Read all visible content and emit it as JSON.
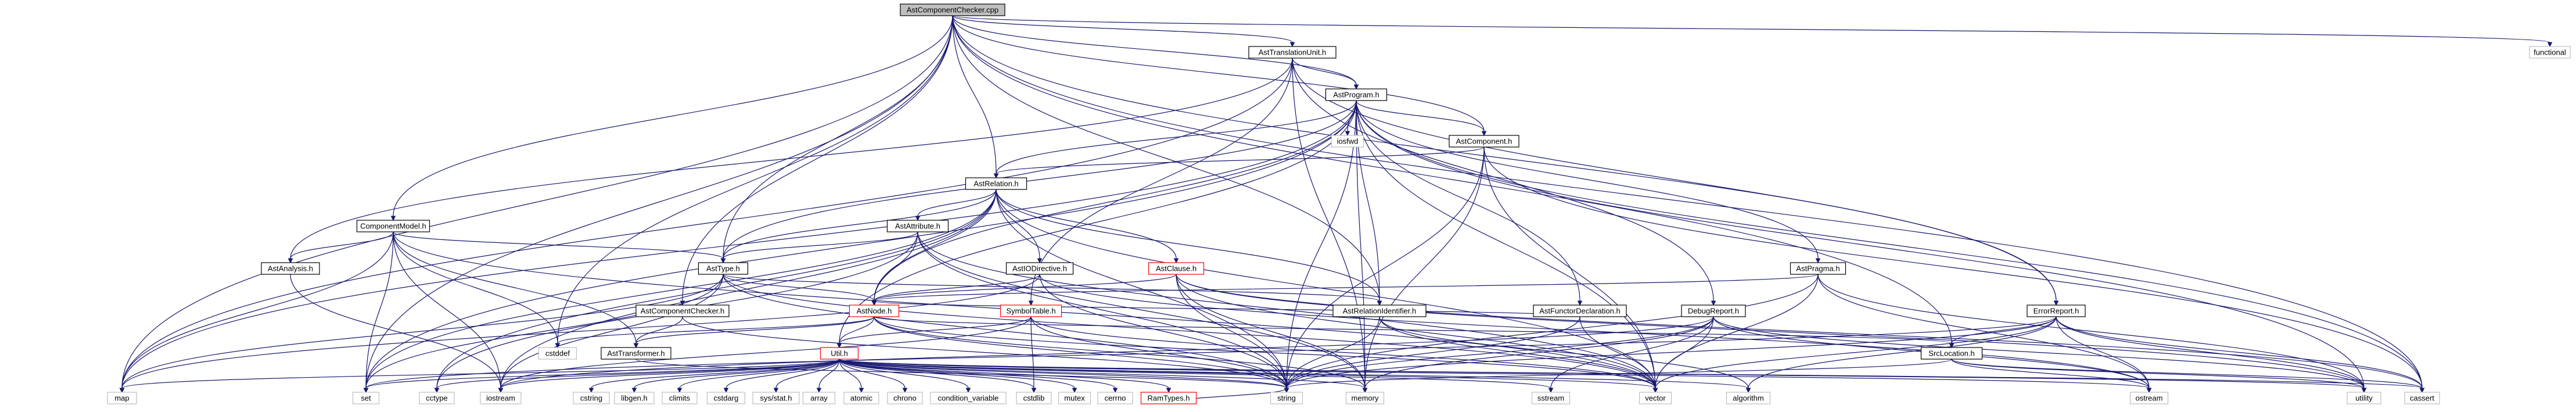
{
  "graph": {
    "colors": {
      "edge": "#191970",
      "root_fill": "#bfbfbf",
      "node_fill": "#ffffff",
      "node_border": "#000000",
      "external_border": "#bfbfbf",
      "truncated_border": "#ff0000"
    },
    "nodes": [
      {
        "id": "AstComponentChecker_cpp",
        "label": "AstComponentChecker.cpp",
        "kind": "root"
      },
      {
        "id": "AstTranslationUnit_h",
        "label": "AstTranslationUnit.h",
        "kind": "header"
      },
      {
        "id": "functional",
        "label": "functional",
        "kind": "system"
      },
      {
        "id": "AstProgram_h",
        "label": "AstProgram.h",
        "kind": "header"
      },
      {
        "id": "iosfwd",
        "label": "iosfwd",
        "kind": "system"
      },
      {
        "id": "AstComponent_h",
        "label": "AstComponent.h",
        "kind": "header"
      },
      {
        "id": "AstRelation_h",
        "label": "AstRelation.h",
        "kind": "header"
      },
      {
        "id": "ComponentModel_h",
        "label": "ComponentModel.h",
        "kind": "header"
      },
      {
        "id": "AstAttribute_h",
        "label": "AstAttribute.h",
        "kind": "header"
      },
      {
        "id": "AstAnalysis_h",
        "label": "AstAnalysis.h",
        "kind": "header"
      },
      {
        "id": "AstType_h",
        "label": "AstType.h",
        "kind": "header"
      },
      {
        "id": "AstIODirective_h",
        "label": "AstIODirective.h",
        "kind": "header"
      },
      {
        "id": "AstClause_h",
        "label": "AstClause.h",
        "kind": "truncated"
      },
      {
        "id": "AstPragma_h",
        "label": "AstPragma.h",
        "kind": "header"
      },
      {
        "id": "AstComponentChecker_h",
        "label": "AstComponentChecker.h",
        "kind": "header"
      },
      {
        "id": "AstNode_h",
        "label": "AstNode.h",
        "kind": "truncated"
      },
      {
        "id": "SymbolTable_h",
        "label": "SymbolTable.h",
        "kind": "truncated"
      },
      {
        "id": "AstRelationIdentifier_h",
        "label": "AstRelationIdentifier.h",
        "kind": "header"
      },
      {
        "id": "AstFunctorDeclaration_h",
        "label": "AstFunctorDeclaration.h",
        "kind": "header"
      },
      {
        "id": "DebugReport_h",
        "label": "DebugReport.h",
        "kind": "header"
      },
      {
        "id": "ErrorReport_h",
        "label": "ErrorReport.h",
        "kind": "header"
      },
      {
        "id": "AstTransformer_h",
        "label": "AstTransformer.h",
        "kind": "header"
      },
      {
        "id": "cstddef",
        "label": "cstddef",
        "kind": "system"
      },
      {
        "id": "SrcLocation_h",
        "label": "SrcLocation.h",
        "kind": "header"
      },
      {
        "id": "Util_h",
        "label": "Util.h",
        "kind": "truncated"
      },
      {
        "id": "map",
        "label": "map",
        "kind": "system"
      },
      {
        "id": "set",
        "label": "set",
        "kind": "system"
      },
      {
        "id": "cctype",
        "label": "cctype",
        "kind": "system"
      },
      {
        "id": "iostream",
        "label": "iostream",
        "kind": "system"
      },
      {
        "id": "cstring",
        "label": "cstring",
        "kind": "system"
      },
      {
        "id": "libgen_h",
        "label": "libgen.h",
        "kind": "system"
      },
      {
        "id": "climits",
        "label": "climits",
        "kind": "system"
      },
      {
        "id": "cstdarg",
        "label": "cstdarg",
        "kind": "system"
      },
      {
        "id": "sys_stat_h",
        "label": "sys/stat.h",
        "kind": "system"
      },
      {
        "id": "array",
        "label": "array",
        "kind": "system"
      },
      {
        "id": "atomic",
        "label": "atomic",
        "kind": "system"
      },
      {
        "id": "chrono",
        "label": "chrono",
        "kind": "system"
      },
      {
        "id": "condition_variable",
        "label": "condition_variable",
        "kind": "system"
      },
      {
        "id": "cstdlib",
        "label": "cstdlib",
        "kind": "system"
      },
      {
        "id": "mutex",
        "label": "mutex",
        "kind": "system"
      },
      {
        "id": "cerrno",
        "label": "cerrno",
        "kind": "system"
      },
      {
        "id": "RamTypes_h",
        "label": "RamTypes.h",
        "kind": "truncated"
      },
      {
        "id": "string",
        "label": "string",
        "kind": "system"
      },
      {
        "id": "memory",
        "label": "memory",
        "kind": "system"
      },
      {
        "id": "sstream",
        "label": "sstream",
        "kind": "system"
      },
      {
        "id": "vector",
        "label": "vector",
        "kind": "system"
      },
      {
        "id": "algorithm",
        "label": "algorithm",
        "kind": "system"
      },
      {
        "id": "ostream",
        "label": "ostream",
        "kind": "system"
      },
      {
        "id": "utility",
        "label": "utility",
        "kind": "system"
      },
      {
        "id": "cassert",
        "label": "cassert",
        "kind": "system"
      }
    ],
    "edges": [
      [
        "AstComponentChecker_cpp",
        "AstTranslationUnit_h"
      ],
      [
        "AstComponentChecker_cpp",
        "functional"
      ],
      [
        "AstComponentChecker_cpp",
        "AstProgram_h"
      ],
      [
        "AstComponentChecker_cpp",
        "AstComponent_h"
      ],
      [
        "AstComponentChecker_cpp",
        "AstRelation_h"
      ],
      [
        "AstComponentChecker_cpp",
        "ComponentModel_h"
      ],
      [
        "AstComponentChecker_cpp",
        "AstType_h"
      ],
      [
        "AstComponentChecker_cpp",
        "AstComponentChecker_h"
      ],
      [
        "AstComponentChecker_cpp",
        "AstRelationIdentifier_h"
      ],
      [
        "AstComponentChecker_cpp",
        "ErrorReport_h"
      ],
      [
        "AstComponentChecker_cpp",
        "SrcLocation_h"
      ],
      [
        "AstComponentChecker_cpp",
        "map"
      ],
      [
        "AstComponentChecker_cpp",
        "set"
      ],
      [
        "AstComponentChecker_cpp",
        "cassert"
      ],
      [
        "AstComponentChecker_cpp",
        "cstddef"
      ],
      [
        "AstTranslationUnit_h",
        "AstProgram_h"
      ],
      [
        "AstTranslationUnit_h",
        "DebugReport_h"
      ],
      [
        "AstTranslationUnit_h",
        "ErrorReport_h"
      ],
      [
        "AstTranslationUnit_h",
        "SymbolTable_h"
      ],
      [
        "AstTranslationUnit_h",
        "AstAnalysis_h"
      ],
      [
        "AstTranslationUnit_h",
        "map"
      ],
      [
        "AstTranslationUnit_h",
        "memory"
      ],
      [
        "AstProgram_h",
        "iosfwd"
      ],
      [
        "AstProgram_h",
        "AstComponent_h"
      ],
      [
        "AstProgram_h",
        "AstRelation_h"
      ],
      [
        "AstProgram_h",
        "AstType_h"
      ],
      [
        "AstProgram_h",
        "AstPragma_h"
      ],
      [
        "AstProgram_h",
        "AstFunctorDeclaration_h"
      ],
      [
        "AstProgram_h",
        "AstRelationIdentifier_h"
      ],
      [
        "AstProgram_h",
        "AstNode_h"
      ],
      [
        "AstProgram_h",
        "Util_h"
      ],
      [
        "AstProgram_h",
        "map"
      ],
      [
        "AstProgram_h",
        "set"
      ],
      [
        "AstProgram_h",
        "memory"
      ],
      [
        "AstProgram_h",
        "string"
      ],
      [
        "AstProgram_h",
        "vector"
      ],
      [
        "AstProgram_h",
        "cassert"
      ],
      [
        "AstProgram_h",
        "utility"
      ],
      [
        "AstComponent_h",
        "AstRelation_h"
      ],
      [
        "AstComponent_h",
        "string"
      ],
      [
        "AstComponent_h",
        "vector"
      ],
      [
        "AstComponent_h",
        "memory"
      ],
      [
        "AstComponent_h",
        "cassert"
      ],
      [
        "AstRelation_h",
        "AstAttribute_h"
      ],
      [
        "AstRelation_h",
        "AstIODirective_h"
      ],
      [
        "AstRelation_h",
        "AstClause_h"
      ],
      [
        "AstRelation_h",
        "AstType_h"
      ],
      [
        "AstRelation_h",
        "AstNode_h"
      ],
      [
        "AstRelation_h",
        "AstRelationIdentifier_h"
      ],
      [
        "AstRelation_h",
        "set"
      ],
      [
        "AstRelation_h",
        "cctype"
      ],
      [
        "AstRelation_h",
        "iostream"
      ],
      [
        "AstRelation_h",
        "string"
      ],
      [
        "AstRelation_h",
        "vector"
      ],
      [
        "ComponentModel_h",
        "AstAnalysis_h"
      ],
      [
        "ComponentModel_h",
        "AstType_h"
      ],
      [
        "ComponentModel_h",
        "AstTransformer_h"
      ],
      [
        "ComponentModel_h",
        "map"
      ],
      [
        "ComponentModel_h",
        "set"
      ],
      [
        "ComponentModel_h",
        "vector"
      ],
      [
        "ComponentModel_h",
        "iostream"
      ],
      [
        "ComponentModel_h",
        "cstddef"
      ],
      [
        "AstAttribute_h",
        "AstType_h"
      ],
      [
        "AstAttribute_h",
        "AstNode_h"
      ],
      [
        "AstAttribute_h",
        "string"
      ],
      [
        "AstAttribute_h",
        "memory"
      ],
      [
        "AstAttribute_h",
        "vector"
      ],
      [
        "AstAttribute_h",
        "cctype"
      ],
      [
        "AstAnalysis_h",
        "iostream"
      ],
      [
        "AstType_h",
        "AstNode_h"
      ],
      [
        "AstType_h",
        "AstRelationIdentifier_h"
      ],
      [
        "AstType_h",
        "map"
      ],
      [
        "AstType_h",
        "set"
      ],
      [
        "AstType_h",
        "string"
      ],
      [
        "AstType_h",
        "vector"
      ],
      [
        "AstType_h",
        "iostream"
      ],
      [
        "AstIODirective_h",
        "AstNode_h"
      ],
      [
        "AstIODirective_h",
        "map"
      ],
      [
        "AstIODirective_h",
        "string"
      ],
      [
        "AstIODirective_h",
        "ostream"
      ],
      [
        "AstClause_h",
        "AstNode_h"
      ],
      [
        "AstClause_h",
        "string"
      ],
      [
        "AstClause_h",
        "vector"
      ],
      [
        "AstClause_h",
        "memory"
      ],
      [
        "AstClause_h",
        "cassert"
      ],
      [
        "AstClause_h",
        "utility"
      ],
      [
        "AstPragma_h",
        "AstNode_h"
      ],
      [
        "AstPragma_h",
        "string"
      ],
      [
        "AstPragma_h",
        "vector"
      ],
      [
        "AstPragma_h",
        "ostream"
      ],
      [
        "AstPragma_h",
        "utility"
      ],
      [
        "AstComponentChecker_h",
        "AstTransformer_h"
      ],
      [
        "AstComponentChecker_h",
        "string"
      ],
      [
        "AstNode_h",
        "Util_h"
      ],
      [
        "AstNode_h",
        "SrcLocation_h"
      ],
      [
        "AstNode_h",
        "AstTransformer_h"
      ],
      [
        "AstNode_h",
        "memory"
      ],
      [
        "AstNode_h",
        "string"
      ],
      [
        "AstNode_h",
        "vector"
      ],
      [
        "AstNode_h",
        "cstddef"
      ],
      [
        "SymbolTable_h",
        "Util_h"
      ],
      [
        "SymbolTable_h",
        "string"
      ],
      [
        "SymbolTable_h",
        "vector"
      ],
      [
        "SymbolTable_h",
        "iostream"
      ],
      [
        "SymbolTable_h",
        "cstdlib"
      ],
      [
        "AstRelationIdentifier_h",
        "string"
      ],
      [
        "AstRelationIdentifier_h",
        "vector"
      ],
      [
        "AstRelationIdentifier_h",
        "algorithm"
      ],
      [
        "AstFunctorDeclaration_h",
        "AstNode_h"
      ],
      [
        "AstFunctorDeclaration_h",
        "string"
      ],
      [
        "AstFunctorDeclaration_h",
        "vector"
      ],
      [
        "DebugReport_h",
        "string"
      ],
      [
        "DebugReport_h",
        "vector"
      ],
      [
        "DebugReport_h",
        "sstream"
      ],
      [
        "DebugReport_h",
        "memory"
      ],
      [
        "DebugReport_h",
        "iostream"
      ],
      [
        "DebugReport_h",
        "ostream"
      ],
      [
        "DebugReport_h",
        "utility"
      ],
      [
        "ErrorReport_h",
        "SrcLocation_h"
      ],
      [
        "ErrorReport_h",
        "set"
      ],
      [
        "ErrorReport_h",
        "string"
      ],
      [
        "ErrorReport_h",
        "vector"
      ],
      [
        "ErrorReport_h",
        "algorithm"
      ],
      [
        "ErrorReport_h",
        "ostream"
      ],
      [
        "ErrorReport_h",
        "utility"
      ],
      [
        "ErrorReport_h",
        "cassert"
      ],
      [
        "AstTransformer_h",
        "string"
      ],
      [
        "SrcLocation_h",
        "string"
      ],
      [
        "SrcLocation_h",
        "ostream"
      ],
      [
        "SrcLocation_h",
        "utility"
      ],
      [
        "SrcLocation_h",
        "cassert"
      ],
      [
        "Util_h",
        "map"
      ],
      [
        "Util_h",
        "set"
      ],
      [
        "Util_h",
        "cctype"
      ],
      [
        "Util_h",
        "iostream"
      ],
      [
        "Util_h",
        "cstring"
      ],
      [
        "Util_h",
        "libgen_h"
      ],
      [
        "Util_h",
        "climits"
      ],
      [
        "Util_h",
        "cstdarg"
      ],
      [
        "Util_h",
        "sys_stat_h"
      ],
      [
        "Util_h",
        "array"
      ],
      [
        "Util_h",
        "atomic"
      ],
      [
        "Util_h",
        "chrono"
      ],
      [
        "Util_h",
        "condition_variable"
      ],
      [
        "Util_h",
        "cstdlib"
      ],
      [
        "Util_h",
        "mutex"
      ],
      [
        "Util_h",
        "cerrno"
      ],
      [
        "Util_h",
        "RamTypes_h"
      ],
      [
        "Util_h",
        "string"
      ],
      [
        "Util_h",
        "memory"
      ],
      [
        "Util_h",
        "sstream"
      ],
      [
        "Util_h",
        "vector"
      ],
      [
        "Util_h",
        "algorithm"
      ],
      [
        "Util_h",
        "ostream"
      ],
      [
        "Util_h",
        "utility"
      ],
      [
        "Util_h",
        "cassert"
      ],
      [
        "RamTypes_h",
        "string"
      ]
    ]
  }
}
